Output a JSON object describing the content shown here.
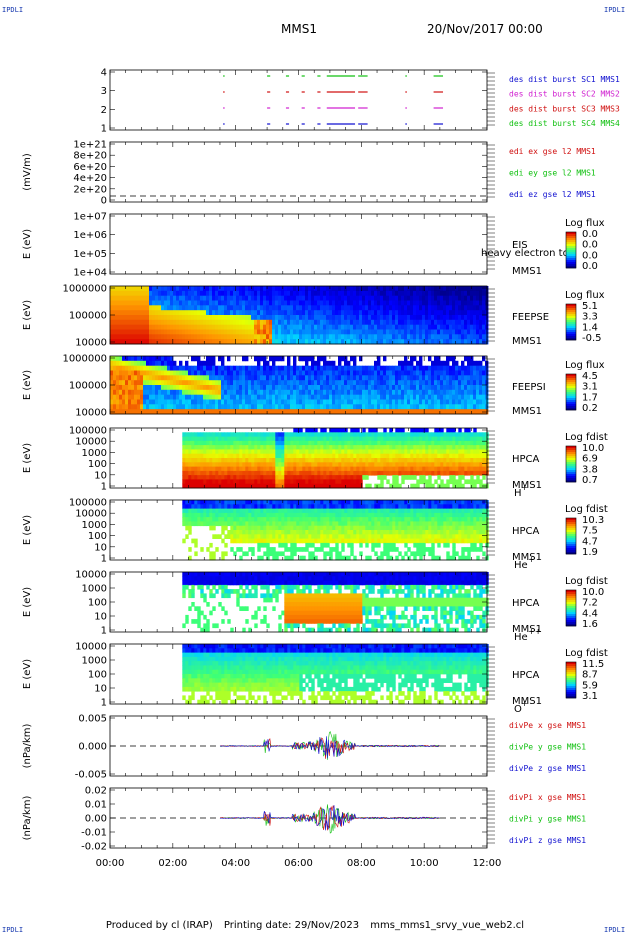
{
  "header": {
    "spacecraft": "MMS1",
    "datetime": "20/Nov/2017 00:00",
    "corner_label": "IPDLI"
  },
  "footer": {
    "produced_by": "Produced by cl (IRAP)",
    "printing_date": "Printing date: 29/Nov/2023",
    "filename": "mms_mms1_srvy_vue_web2.cl"
  },
  "chart_data": {
    "type": "multi-panel",
    "x_tick_labels": [
      "00:00",
      "02:00",
      "04:00",
      "06:00",
      "08:00",
      "10:00",
      "12:00"
    ],
    "xlim_hours": [
      0,
      12
    ],
    "panels": [
      {
        "id": "burst",
        "type": "timeline",
        "ylabel": "",
        "y_tick_labels": [
          "4",
          "3",
          "2",
          "1"
        ],
        "legend": [
          {
            "text": "des dist burst SC1 MMS1",
            "color": "#1010d0"
          },
          {
            "text": "des dist burst SC2 MMS2",
            "color": "#d020d0"
          },
          {
            "text": "des dist burst SC3 MMS3",
            "color": "#d01010"
          },
          {
            "text": "des dist burst SC4 MMS4",
            "color": "#10c010"
          }
        ],
        "intervals_hours": [
          [
            3.6,
            3.65
          ],
          [
            5.0,
            5.1
          ],
          [
            5.6,
            5.7
          ],
          [
            6.1,
            6.2
          ],
          [
            6.6,
            6.7
          ],
          [
            6.9,
            7.8
          ],
          [
            7.9,
            8.2
          ],
          [
            9.4,
            9.45
          ],
          [
            10.3,
            10.6
          ]
        ]
      },
      {
        "id": "edi",
        "type": "line",
        "ylabel": "(mV/m)",
        "y_tick_labels": [
          "1e+21",
          "8e+20",
          "6e+20",
          "4e+20",
          "2e+20",
          "0"
        ],
        "legend": [
          {
            "text": "edi ex gse l2 MMS1",
            "color": "#d01010"
          },
          {
            "text": "edi ey gse l2 MMS1",
            "color": "#10c010"
          },
          {
            "text": "edi ez gse l2 MMS1",
            "color": "#1010d0"
          }
        ]
      },
      {
        "id": "eis",
        "type": "heatmap",
        "ylabel": "E (eV)",
        "y_tick_labels": [
          "1e+07",
          "1e+06",
          "1e+05",
          "1e+04"
        ],
        "right_labels": [
          "EIS",
          "MMS1"
        ],
        "overlay_label": "heavy electron to",
        "colorbar_title": "Log flux",
        "colorbar_ticks": [
          "0.0",
          "0.0",
          "0.0",
          "0.0"
        ]
      },
      {
        "id": "feepse",
        "type": "heatmap",
        "ylabel": "E (eV)",
        "y_tick_labels": [
          "1000000",
          "100000",
          "10000"
        ],
        "right_labels": [
          "FEEPSE",
          "MMS1"
        ],
        "colorbar_title": "Log flux",
        "colorbar_ticks": [
          "5.1",
          "3.3",
          "1.4",
          "-0.5"
        ]
      },
      {
        "id": "feepsi",
        "type": "heatmap",
        "ylabel": "E (eV)",
        "y_tick_labels": [
          "1000000",
          "100000",
          "10000"
        ],
        "right_labels": [
          "FEEPSI",
          "MMS1"
        ],
        "colorbar_title": "Log flux",
        "colorbar_ticks": [
          "4.5",
          "3.1",
          "1.7",
          "0.2"
        ]
      },
      {
        "id": "hpca_h",
        "type": "heatmap",
        "ylabel": "E (eV)",
        "y_tick_labels": [
          "100000",
          "10000",
          "1000",
          "100",
          "10",
          "1"
        ],
        "right_labels": [
          "HPCA",
          "MMS1"
        ],
        "species": "H",
        "species_charge": "+",
        "colorbar_title": "Log fdist",
        "colorbar_ticks": [
          "10.0",
          "6.9",
          "3.8",
          "0.7"
        ]
      },
      {
        "id": "hpca_he",
        "type": "heatmap",
        "ylabel": "E (eV)",
        "y_tick_labels": [
          "100000",
          "10000",
          "1000",
          "100",
          "10",
          "1"
        ],
        "right_labels": [
          "HPCA",
          "MMS1"
        ],
        "species": "He",
        "species_charge": "+",
        "colorbar_title": "Log fdist",
        "colorbar_ticks": [
          "10.3",
          "7.5",
          "4.7",
          "1.9"
        ]
      },
      {
        "id": "hpca_he2",
        "type": "heatmap",
        "ylabel": "E (eV)",
        "y_tick_labels": [
          "10000",
          "1000",
          "100",
          "10",
          "1"
        ],
        "right_labels": [
          "HPCA",
          "MMS1"
        ],
        "species": "He",
        "species_charge": "++",
        "colorbar_title": "Log fdist",
        "colorbar_ticks": [
          "10.0",
          "7.2",
          "4.4",
          "1.6"
        ]
      },
      {
        "id": "hpca_o",
        "type": "heatmap",
        "ylabel": "E (eV)",
        "y_tick_labels": [
          "10000",
          "1000",
          "100",
          "10",
          "1"
        ],
        "right_labels": [
          "HPCA",
          "MMS1"
        ],
        "species": "O",
        "species_charge": "+",
        "colorbar_title": "Log fdist",
        "colorbar_ticks": [
          "11.5",
          "8.7",
          "5.9",
          "3.1"
        ]
      },
      {
        "id": "divpe",
        "type": "line",
        "ylabel": "(nPa/km)",
        "y_tick_labels": [
          "0.005",
          "0.000",
          "-0.005"
        ],
        "ylim": [
          -0.009,
          0.009
        ],
        "legend": [
          {
            "text": "divPe x gse MMS1",
            "color": "#d01010"
          },
          {
            "text": "divPe y gse MMS1",
            "color": "#10c010"
          },
          {
            "text": "divPe z gse MMS1",
            "color": "#1010d0"
          }
        ]
      },
      {
        "id": "divpi",
        "type": "line",
        "ylabel": "(nPa/km)",
        "y_tick_labels": [
          "0.02",
          "0.01",
          "0.00",
          "-0.01",
          "-0.02"
        ],
        "ylim": [
          -0.025,
          0.025
        ],
        "legend": [
          {
            "text": "divPi x gse MMS1",
            "color": "#d01010"
          },
          {
            "text": "divPi y gse MMS1",
            "color": "#10c010"
          },
          {
            "text": "divPi z gse MMS1",
            "color": "#1010d0"
          }
        ]
      }
    ]
  }
}
